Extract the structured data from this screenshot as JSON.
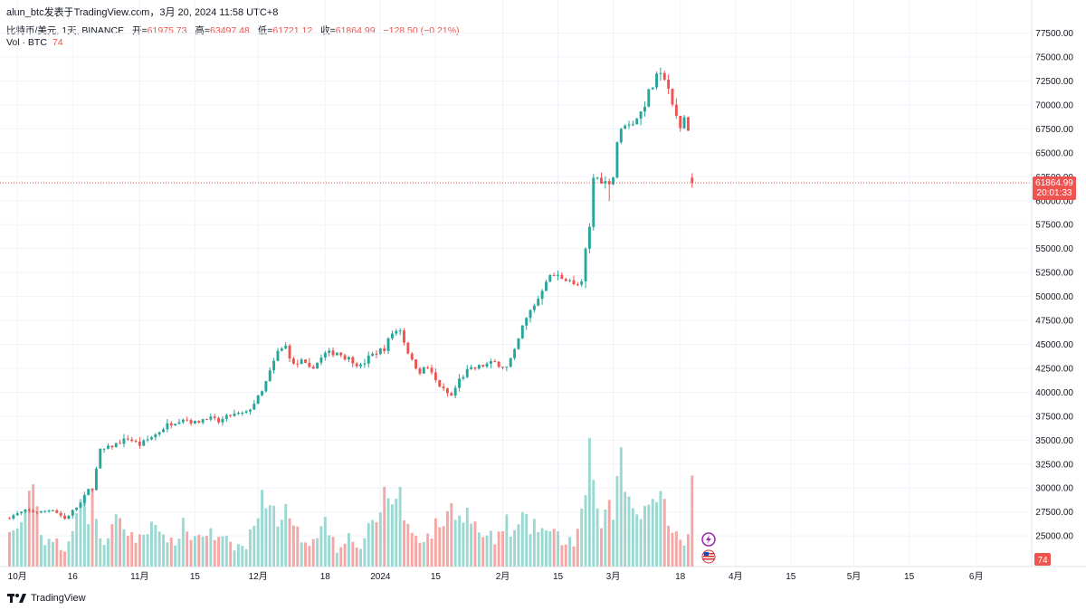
{
  "header": {
    "publisher": "alun_btc发表于TradingView.com，",
    "timestamp": "3月 20, 2024 11:58 UTC+8"
  },
  "legend": {
    "symbol": "比特币/美元, 1天, BINANCE",
    "open_label": "开=",
    "open": "61975.73",
    "high_label": "高=",
    "high": "63497.48",
    "low_label": "低=",
    "low": "61721.12",
    "close_label": "收=",
    "close": "61864.99",
    "change": "−128.50 (−0.21%)"
  },
  "volume_legend": {
    "label": "Vol · BTC",
    "value": "74"
  },
  "price_tag": {
    "value": "61864.99",
    "countdown": "20:01:33"
  },
  "volume_tag": {
    "value": "74"
  },
  "footer": {
    "brand": "TradingView"
  },
  "colors": {
    "up": "#26a69a",
    "down": "#ef5350",
    "up_vol": "#9bd8d2",
    "down_vol": "#f5a7a5",
    "grid": "#f0f3fa"
  },
  "chart_data": {
    "type": "candlestick",
    "title": "比特币/美元, 1天, BINANCE",
    "y_axis": {
      "range": [
        21800,
        78500
      ],
      "ticks": [
        25000,
        27500,
        30000,
        32500,
        35000,
        37500,
        40000,
        42500,
        45000,
        47500,
        50000,
        52500,
        55000,
        57500,
        60000,
        62500,
        65000,
        67500,
        70000,
        72500,
        75000,
        77500
      ],
      "tick_labels": [
        "25000.00",
        "27500.00",
        "30000.00",
        "32500.00",
        "35000.00",
        "37500.00",
        "40000.00",
        "42500.00",
        "45000.00",
        "47500.00",
        "50000.00",
        "52500.00",
        "55000.00",
        "57500.00",
        "60000.00",
        "62500.00",
        "65000.00",
        "67500.00",
        "70000.00",
        "72500.00",
        "75000.00",
        "77500.00"
      ]
    },
    "x_axis": {
      "labels": [
        {
          "text": "10月",
          "day": 2
        },
        {
          "text": "16",
          "day": 16
        },
        {
          "text": "11月",
          "day": 33
        },
        {
          "text": "15",
          "day": 47
        },
        {
          "text": "12月",
          "day": 63
        },
        {
          "text": "18",
          "day": 80
        },
        {
          "text": "2024",
          "day": 94
        },
        {
          "text": "15",
          "day": 108
        },
        {
          "text": "2月",
          "day": 125
        },
        {
          "text": "15",
          "day": 139
        },
        {
          "text": "3月",
          "day": 153
        },
        {
          "text": "18",
          "day": 170
        },
        {
          "text": "4月",
          "day": 184
        },
        {
          "text": "15",
          "day": 198
        },
        {
          "text": "5月",
          "day": 214
        },
        {
          "text": "15",
          "day": 228
        },
        {
          "text": "6月",
          "day": 245
        }
      ]
    },
    "current_price": 61864.99,
    "close_anchors": [
      [
        0,
        27000
      ],
      [
        4,
        27600
      ],
      [
        8,
        27500
      ],
      [
        11,
        27800
      ],
      [
        14,
        26800
      ],
      [
        18,
        28400
      ],
      [
        20,
        29800
      ],
      [
        21,
        30000
      ],
      [
        23,
        33900
      ],
      [
        25,
        34200
      ],
      [
        30,
        35200
      ],
      [
        33,
        34500
      ],
      [
        37,
        35600
      ],
      [
        40,
        36600
      ],
      [
        44,
        37300
      ],
      [
        47,
        36800
      ],
      [
        50,
        37400
      ],
      [
        53,
        36900
      ],
      [
        56,
        37600
      ],
      [
        60,
        37800
      ],
      [
        64,
        40000
      ],
      [
        66,
        42100
      ],
      [
        68,
        44200
      ],
      [
        70,
        44800
      ],
      [
        72,
        42800
      ],
      [
        74,
        43200
      ],
      [
        76,
        42400
      ],
      [
        78,
        43100
      ],
      [
        80,
        44000
      ],
      [
        83,
        44200
      ],
      [
        85,
        43700
      ],
      [
        87,
        43300
      ],
      [
        89,
        42700
      ],
      [
        91,
        43600
      ],
      [
        93,
        44200
      ],
      [
        95,
        44600
      ],
      [
        97,
        46200
      ],
      [
        99,
        46600
      ],
      [
        100,
        45300
      ],
      [
        102,
        43200
      ],
      [
        104,
        42200
      ],
      [
        106,
        42600
      ],
      [
        108,
        41200
      ],
      [
        110,
        40200
      ],
      [
        112,
        39600
      ],
      [
        114,
        41300
      ],
      [
        116,
        42200
      ],
      [
        118,
        42500
      ],
      [
        120,
        42800
      ],
      [
        123,
        43100
      ],
      [
        126,
        42600
      ],
      [
        128,
        44200
      ],
      [
        130,
        46800
      ],
      [
        132,
        48500
      ],
      [
        134,
        49800
      ],
      [
        136,
        51800
      ],
      [
        138,
        52200
      ],
      [
        140,
        52000
      ],
      [
        142,
        51800
      ],
      [
        143,
        51100
      ],
      [
        145,
        51300
      ],
      [
        146,
        54800
      ],
      [
        147,
        57100
      ],
      [
        148,
        62400
      ],
      [
        150,
        62200
      ],
      [
        151,
        61900
      ],
      [
        152,
        62100
      ],
      [
        153,
        62500
      ],
      [
        154,
        66200
      ],
      [
        156,
        68200
      ],
      [
        157,
        67800
      ],
      [
        158,
        68300
      ],
      [
        160,
        69200
      ],
      [
        162,
        71200
      ],
      [
        164,
        72800
      ],
      [
        166,
        73000
      ],
      [
        167,
        71800
      ],
      [
        168,
        69700
      ],
      [
        170,
        67700
      ],
      [
        171,
        68700
      ],
      [
        172,
        67600
      ],
      [
        173,
        61864.99
      ]
    ],
    "volume_anchors": [
      [
        0,
        25000
      ],
      [
        4,
        27000
      ],
      [
        6,
        31000
      ],
      [
        8,
        25000
      ],
      [
        11,
        24500
      ],
      [
        14,
        23000
      ],
      [
        18,
        29500
      ],
      [
        20,
        27000
      ],
      [
        21,
        30000
      ],
      [
        23,
        24000
      ],
      [
        27,
        26500
      ],
      [
        30,
        25500
      ],
      [
        33,
        24500
      ],
      [
        37,
        27000
      ],
      [
        40,
        23500
      ],
      [
        44,
        26000
      ],
      [
        47,
        24800
      ],
      [
        50,
        25500
      ],
      [
        53,
        24500
      ],
      [
        56,
        24000
      ],
      [
        60,
        23800
      ],
      [
        64,
        29000
      ],
      [
        66,
        28500
      ],
      [
        68,
        26800
      ],
      [
        70,
        27600
      ],
      [
        72,
        25500
      ],
      [
        74,
        25000
      ],
      [
        76,
        24500
      ],
      [
        78,
        25500
      ],
      [
        80,
        26500
      ],
      [
        83,
        24000
      ],
      [
        85,
        25000
      ],
      [
        87,
        24500
      ],
      [
        89,
        24000
      ],
      [
        91,
        25500
      ],
      [
        93,
        26500
      ],
      [
        95,
        29500
      ],
      [
        97,
        28500
      ],
      [
        99,
        30000
      ],
      [
        100,
        26500
      ],
      [
        102,
        25500
      ],
      [
        104,
        25000
      ],
      [
        106,
        24800
      ],
      [
        108,
        26000
      ],
      [
        110,
        26500
      ],
      [
        112,
        28000
      ],
      [
        114,
        27000
      ],
      [
        116,
        27500
      ],
      [
        118,
        26000
      ],
      [
        120,
        25000
      ],
      [
        123,
        24500
      ],
      [
        126,
        26500
      ],
      [
        128,
        25000
      ],
      [
        130,
        27000
      ],
      [
        132,
        25800
      ],
      [
        134,
        26000
      ],
      [
        136,
        25500
      ],
      [
        138,
        25000
      ],
      [
        140,
        24700
      ],
      [
        142,
        24500
      ],
      [
        143,
        24300
      ],
      [
        145,
        27000
      ],
      [
        146,
        28500
      ],
      [
        147,
        35800
      ],
      [
        148,
        30500
      ],
      [
        150,
        25000
      ],
      [
        151,
        27000
      ],
      [
        152,
        29500
      ],
      [
        153,
        27000
      ],
      [
        154,
        30700
      ],
      [
        155,
        34000
      ],
      [
        156,
        30000
      ],
      [
        157,
        29000
      ],
      [
        158,
        28000
      ],
      [
        160,
        27500
      ],
      [
        162,
        28500
      ],
      [
        164,
        29200
      ],
      [
        166,
        29500
      ],
      [
        167,
        25500
      ],
      [
        168,
        24500
      ],
      [
        170,
        25500
      ],
      [
        171,
        24000
      ],
      [
        172,
        24700
      ],
      [
        173,
        31000
      ]
    ]
  }
}
